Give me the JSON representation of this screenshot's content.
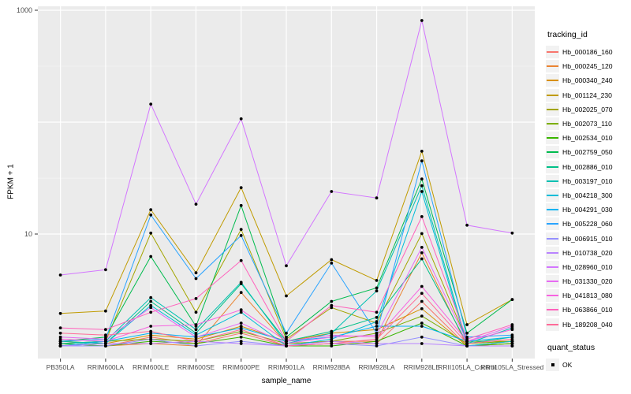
{
  "chart_data": {
    "type": "line",
    "title": "",
    "xlabel": "sample_name",
    "ylabel": "FPKM + 1",
    "y_scale": "log10",
    "ylim": [
      0.82,
      1090
    ],
    "y_tick_labels": [
      {
        "value": 10,
        "label": "10"
      },
      {
        "value": 1000,
        "label": "1000"
      }
    ],
    "y_major_gridlines": [
      10,
      100,
      1000
    ],
    "y_minor_gridlines": [
      31.6,
      316.2
    ],
    "grid": "on",
    "panel_background": "#EBEBEB",
    "gridline_color": "#FFFFFF",
    "point_color": "#000000",
    "axis_text_color": "#4D4D4D",
    "categories": [
      "PB350LA",
      "RRIM600LA",
      "RRIM600LE",
      "RRIM600SE",
      "RRIM600PE",
      "RRIM901LA",
      "RRIM928BA",
      "RRIM928LA",
      "RRIM928LE",
      "RRII105LA_Control",
      "RRII105LA_Stressed"
    ],
    "legend": {
      "position": "right",
      "tracking_title": "tracking_id",
      "quant_title": "quant_status",
      "quant_ok_label": "OK"
    },
    "series": [
      {
        "name": "Hb_000186_160",
        "color": "#F8766D",
        "values": [
          1.05,
          1.0,
          1.2,
          1.05,
          1.3,
          1.0,
          1.05,
          1.05,
          2.5,
          1.0,
          1.05
        ]
      },
      {
        "name": "Hb_000245_120",
        "color": "#EA8331",
        "values": [
          1.0,
          1.0,
          1.05,
          1.0,
          3.0,
          1.05,
          1.1,
          1.1,
          6.8,
          1.0,
          1.05
        ]
      },
      {
        "name": "Hb_000340_240",
        "color": "#D89000",
        "values": [
          1.1,
          1.05,
          1.25,
          1.15,
          1.5,
          1.1,
          1.3,
          1.4,
          2.15,
          1.0,
          1.1
        ]
      },
      {
        "name": "Hb_001124_230",
        "color": "#C09B00",
        "values": [
          1.95,
          2.05,
          16.5,
          4.5,
          26,
          2.8,
          5.9,
          3.85,
          55,
          1.55,
          2.6
        ]
      },
      {
        "name": "Hb_002025_070",
        "color": "#A3A500",
        "values": [
          1.05,
          1.1,
          10.2,
          2.0,
          11,
          1.15,
          2.2,
          1.6,
          10.1,
          1.1,
          1.1
        ]
      },
      {
        "name": "Hb_002073_110",
        "color": "#7CAE00",
        "values": [
          1.0,
          1.1,
          1.15,
          1.1,
          1.35,
          1.05,
          1.1,
          1.3,
          1.85,
          1.05,
          1.1
        ]
      },
      {
        "name": "Hb_002534_010",
        "color": "#39B600",
        "values": [
          1.05,
          1.0,
          1.1,
          1.05,
          1.2,
          1.0,
          1.0,
          1.1,
          1.6,
          1.0,
          1.05
        ]
      },
      {
        "name": "Hb_002759_050",
        "color": "#00BB4E",
        "values": [
          1.1,
          1.2,
          6.3,
          1.5,
          18,
          1.2,
          2.5,
          3.3,
          31,
          1.3,
          2.6
        ]
      },
      {
        "name": "Hb_002886_010",
        "color": "#00C087",
        "values": [
          1.1,
          1.05,
          2.5,
          1.3,
          3.6,
          1.1,
          1.35,
          1.8,
          6.0,
          1.05,
          1.2
        ]
      },
      {
        "name": "Hb_003197_010",
        "color": "#00C0B2",
        "values": [
          1.05,
          1.1,
          2.7,
          1.4,
          3.7,
          1.05,
          1.3,
          3.1,
          27,
          1.05,
          1.45
        ]
      },
      {
        "name": "Hb_004218_300",
        "color": "#00BCD8",
        "values": [
          1.0,
          1.05,
          2.3,
          1.25,
          2.0,
          1.0,
          1.15,
          1.65,
          24,
          1.0,
          1.1
        ]
      },
      {
        "name": "Hb_004291_030",
        "color": "#00B3F2",
        "values": [
          1.0,
          1.1,
          1.3,
          1.2,
          1.45,
          1.1,
          1.2,
          1.5,
          1.5,
          1.1,
          1.2
        ]
      },
      {
        "name": "Hb_005228_060",
        "color": "#29A3FF",
        "values": [
          1.1,
          1.15,
          14.8,
          4.0,
          9.7,
          1.3,
          5.5,
          1.3,
          45,
          1.2,
          1.25
        ]
      },
      {
        "name": "Hb_006915_010",
        "color": "#9590FF",
        "values": [
          1.0,
          1.0,
          1.15,
          1.0,
          1.1,
          1.0,
          1.05,
          1.0,
          1.2,
          1.0,
          1.0
        ]
      },
      {
        "name": "Hb_010738_020",
        "color": "#B983FF",
        "values": [
          1.0,
          1.05,
          1.05,
          1.1,
          1.05,
          1.0,
          1.1,
          1.05,
          1.05,
          1.0,
          1.0
        ]
      },
      {
        "name": "Hb_028960_010",
        "color": "#D376FF",
        "values": [
          4.3,
          4.8,
          145,
          18.5,
          107,
          5.2,
          24,
          21,
          810,
          12,
          10.2
        ]
      },
      {
        "name": "Hb_031330_020",
        "color": "#E76BF3",
        "values": [
          1.2,
          1.15,
          2.2,
          1.2,
          1.6,
          1.05,
          1.2,
          1.25,
          7.6,
          1.1,
          1.5
        ]
      },
      {
        "name": "Hb_041813_080",
        "color": "#F763E0",
        "values": [
          1.15,
          1.1,
          1.5,
          1.55,
          2.1,
          1.1,
          1.25,
          1.2,
          3.4,
          1.1,
          1.4
        ]
      },
      {
        "name": "Hb_063866_010",
        "color": "#FF62BC",
        "values": [
          1.45,
          1.4,
          2.0,
          2.65,
          5.8,
          1.1,
          2.3,
          2.0,
          14.3,
          1.15,
          1.55
        ]
      },
      {
        "name": "Hb_189208_040",
        "color": "#FF6A98",
        "values": [
          1.3,
          1.25,
          1.35,
          1.1,
          1.4,
          1.0,
          1.05,
          1.15,
          2.95,
          1.05,
          1.15
        ]
      }
    ]
  }
}
